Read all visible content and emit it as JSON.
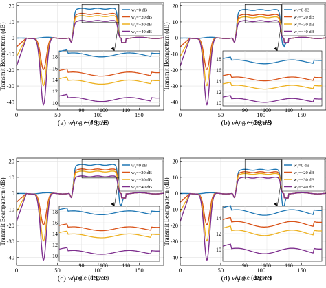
{
  "colors": {
    "w0": "#1f77b4",
    "w20": "#d95319",
    "w30": "#edb120",
    "w40": "#7e2f8e"
  },
  "shared": {
    "xlabel": "Angle (degree)",
    "ylabel": "Transmit Beampattern (dB)",
    "legend": [
      "w₃=0 dB",
      "w₃=−20 dB",
      "w₃=−30 dB",
      "w₃=−40 dB"
    ]
  },
  "chart_data": [
    {
      "type": "line",
      "caption_label": "(a)",
      "caption_math": "w₁ = −10 dB",
      "xlim": [
        0,
        180
      ],
      "ylim": [
        -45,
        22
      ],
      "xticks": [
        0,
        50,
        100,
        150
      ],
      "yticks": [
        20,
        10,
        0,
        -10,
        -20,
        -30,
        -40
      ],
      "legend_position": "top-right",
      "inset": {
        "xlim": [
          80,
          125
        ],
        "ylim": [
          9.5,
          19
        ],
        "xticks": [
          90,
          100,
          110
        ],
        "yticks": [
          18,
          16,
          14,
          12,
          10
        ]
      },
      "series": [
        {
          "name": "w₃=0 dB",
          "nulls": [],
          "main": 18.3
        },
        {
          "name": "w₃=−20 dB",
          "nulls": [
            [
              33,
              -20
            ]
          ],
          "main": 15.0
        },
        {
          "name": "w₃=−30 dB",
          "nulls": [
            [
              33,
              -30
            ]
          ],
          "main": 13.6
        },
        {
          "name": "w₃=−40 dB",
          "nulls": [
            [
              33,
              -42
            ]
          ],
          "main": 10.6
        }
      ]
    },
    {
      "type": "line",
      "caption_label": "(b)",
      "caption_math": "w₁ = −20 dB",
      "xlim": [
        0,
        180
      ],
      "ylim": [
        -45,
        22
      ],
      "xticks": [
        0,
        50,
        100,
        150
      ],
      "yticks": [
        20,
        10,
        0,
        -10,
        -20,
        -30,
        -40
      ],
      "legend_position": "top-right",
      "inset": {
        "xlim": [
          80,
          125
        ],
        "ylim": [
          9.5,
          19.5
        ],
        "xticks": [
          90,
          100,
          110
        ],
        "yticks": [
          18,
          16,
          14,
          12,
          10
        ]
      },
      "series": [
        {
          "name": "w₃=0 dB",
          "nulls": [
            [
              127,
              -5
            ]
          ],
          "main": 17.5
        },
        {
          "name": "w₃=−20 dB",
          "nulls": [
            [
              33,
              -20
            ]
          ],
          "main": 14.4
        },
        {
          "name": "w₃=−30 dB",
          "nulls": [
            [
              33,
              -30
            ]
          ],
          "main": 12.9
        },
        {
          "name": "w₃=−40 dB",
          "nulls": [
            [
              33,
              -42
            ]
          ],
          "main": 10.5
        }
      ]
    },
    {
      "type": "line",
      "caption_label": "(c)",
      "caption_math": "w₁ = −30 dB",
      "xlim": [
        0,
        180
      ],
      "ylim": [
        -45,
        22
      ],
      "xticks": [
        0,
        50,
        100,
        150
      ],
      "yticks": [
        20,
        10,
        0,
        -10,
        -20,
        -30,
        -40
      ],
      "legend_position": "top-right",
      "inset": {
        "xlim": [
          80,
          125
        ],
        "ylim": [
          9,
          19
        ],
        "xticks": [
          90,
          100,
          110
        ],
        "yticks": [
          18,
          16,
          14,
          12,
          10
        ]
      },
      "series": [
        {
          "name": "w₃=0 dB",
          "nulls": [
            [
              127,
              -8
            ]
          ],
          "main": 17.8
        },
        {
          "name": "w₃=−20 dB",
          "nulls": [
            [
              33,
              -20
            ]
          ],
          "main": 14.9
        },
        {
          "name": "w₃=−30 dB",
          "nulls": [
            [
              33,
              -30
            ]
          ],
          "main": 13.6
        },
        {
          "name": "w₃=−40 dB",
          "nulls": [
            [
              33,
              -42
            ]
          ],
          "main": 10.6
        }
      ]
    },
    {
      "type": "line",
      "caption_label": "(d)",
      "caption_math": "w₁ = −40 dB",
      "xlim": [
        0,
        180
      ],
      "ylim": [
        -45,
        22
      ],
      "xticks": [
        0,
        50,
        100,
        150
      ],
      "yticks": [
        20,
        10,
        0,
        -10,
        -20,
        -30,
        -40
      ],
      "legend_position": "top-right",
      "inset": {
        "xlim": [
          80,
          125
        ],
        "ylim": [
          8.5,
          15.5
        ],
        "xticks": [
          90,
          100,
          110
        ],
        "yticks": [
          14,
          12,
          10
        ]
      },
      "series": [
        {
          "name": "w₃=0 dB",
          "nulls": [
            [
              127,
              -9
            ]
          ],
          "main": 14.7
        },
        {
          "name": "w₃=−20 dB",
          "nulls": [
            [
              33,
              -20
            ]
          ],
          "main": 13.2
        },
        {
          "name": "w₃=−30 dB",
          "nulls": [
            [
              33,
              -30
            ]
          ],
          "main": 12.1
        },
        {
          "name": "w₃=−40 dB",
          "nulls": [
            [
              33,
              -42
            ]
          ],
          "main": 9.8
        }
      ]
    }
  ]
}
